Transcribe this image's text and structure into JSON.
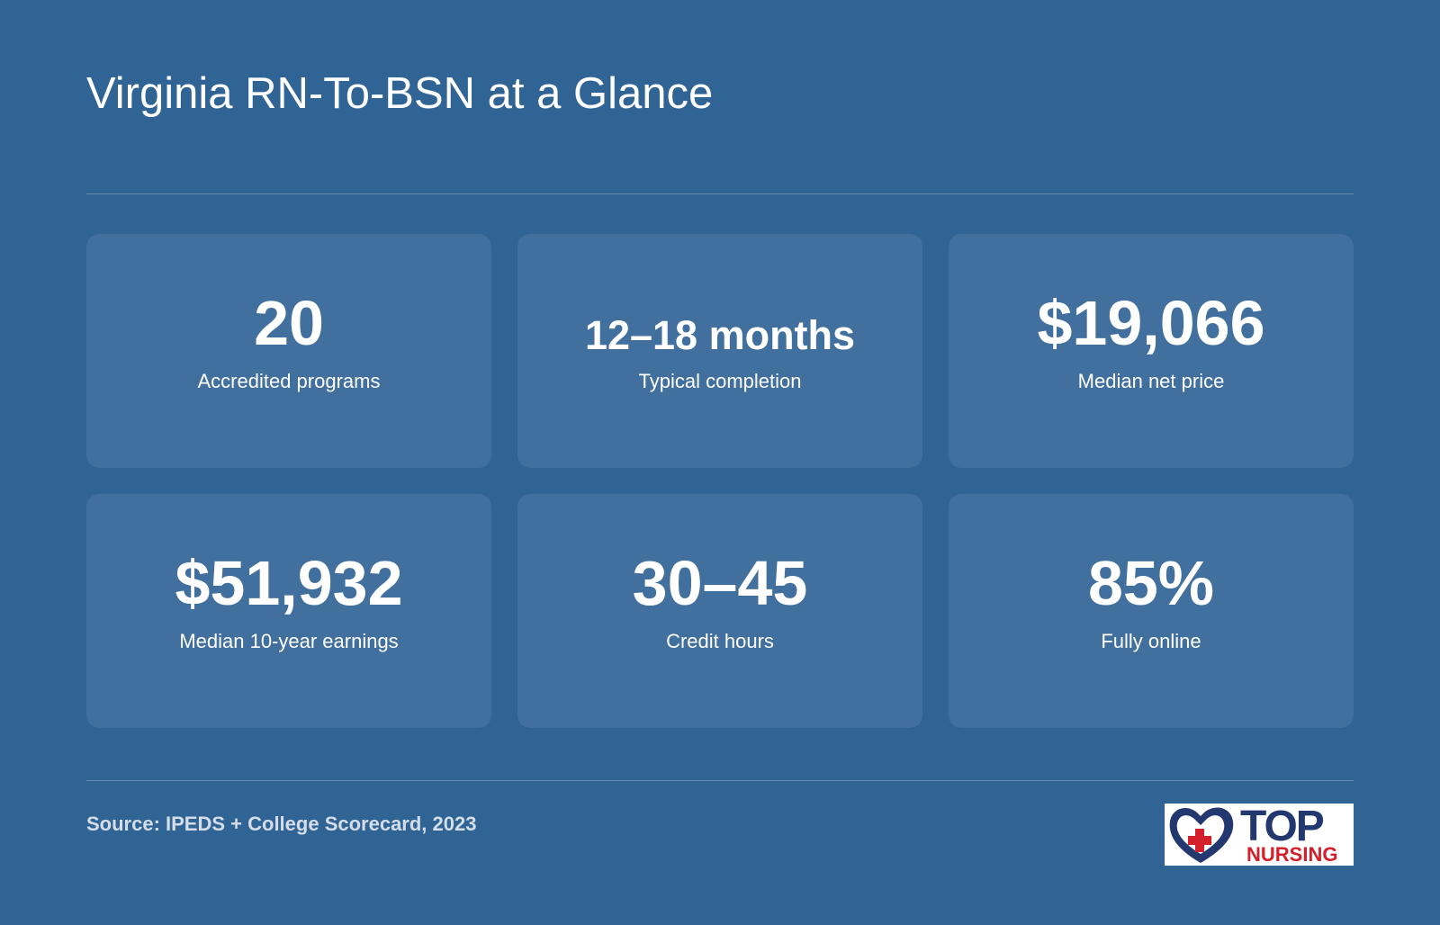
{
  "header": {
    "title": "Virginia RN-To-BSN at a Glance"
  },
  "cards": [
    {
      "value": "20",
      "label": "Accredited programs"
    },
    {
      "value": "12–18 months",
      "label": "Typical completion"
    },
    {
      "value": "$19,066",
      "label": "Median net price"
    },
    {
      "value": "$51,932",
      "label": "Median 10-year earnings"
    },
    {
      "value": "30–45",
      "label": "Credit hours"
    },
    {
      "value": "85%",
      "label": "Fully online"
    }
  ],
  "footer": {
    "source": "Source: IPEDS + College Scorecard, 2023",
    "logo": {
      "top": "TOP",
      "bottom": "NURSING"
    }
  }
}
